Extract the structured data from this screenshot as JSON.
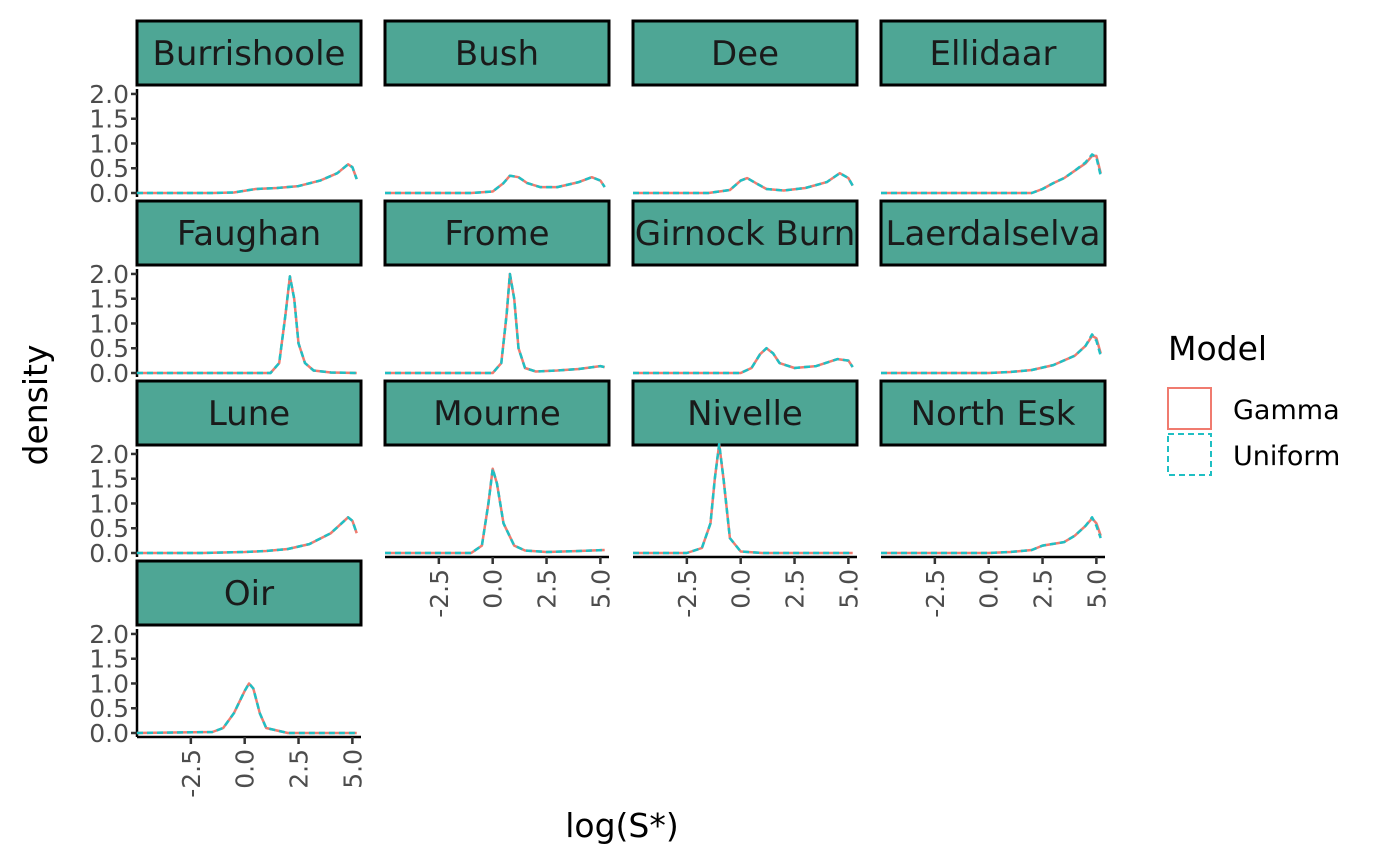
{
  "chart_data": {
    "type": "line",
    "xlabel": "log(S*)",
    "ylabel": "density",
    "xlim": [
      -5,
      5.4
    ],
    "ylim": [
      0,
      2.1
    ],
    "x_ticks": [
      "-2.5",
      "0.0",
      "2.5",
      "5.0"
    ],
    "x_tick_values": [
      -2.5,
      0,
      2.5,
      5
    ],
    "y_ticks": [
      "0.0",
      "0.5",
      "1.0",
      "1.5",
      "2.0"
    ],
    "y_tick_values": [
      0,
      0.5,
      1.0,
      1.5,
      2.0
    ],
    "legend": {
      "title": "Model",
      "position": "right",
      "entries": [
        {
          "name": "Gamma",
          "color": "#f07b6f",
          "dash": "solid"
        },
        {
          "name": "Uniform",
          "color": "#1fbfc3",
          "dash": "dashed"
        }
      ]
    },
    "colors": {
      "strip_fill": "#4ea695"
    },
    "panels": [
      {
        "name": "Burrishoole",
        "x": [
          -5,
          -1.5,
          -0.5,
          0.5,
          1.5,
          2.5,
          3.5,
          4.3,
          4.8,
          5.0,
          5.2
        ],
        "Gamma": [
          0,
          0,
          0.01,
          0.08,
          0.1,
          0.14,
          0.25,
          0.4,
          0.58,
          0.52,
          0.28
        ],
        "Uniform": [
          0,
          0,
          0.01,
          0.08,
          0.1,
          0.14,
          0.25,
          0.4,
          0.58,
          0.52,
          0.28
        ]
      },
      {
        "name": "Bush",
        "x": [
          -5,
          -1,
          0,
          0.5,
          0.8,
          1.2,
          1.6,
          2.2,
          3.0,
          4.0,
          4.6,
          5.0,
          5.2
        ],
        "Gamma": [
          0,
          0,
          0.03,
          0.2,
          0.35,
          0.32,
          0.2,
          0.12,
          0.12,
          0.22,
          0.32,
          0.25,
          0.12
        ],
        "Uniform": [
          0,
          0,
          0.03,
          0.2,
          0.35,
          0.32,
          0.2,
          0.12,
          0.12,
          0.22,
          0.32,
          0.25,
          0.12
        ]
      },
      {
        "name": "Dee",
        "x": [
          -5,
          -1.5,
          -0.5,
          0,
          0.3,
          0.7,
          1.2,
          2.0,
          3.0,
          4.0,
          4.6,
          5.0,
          5.2
        ],
        "Gamma": [
          0,
          0,
          0.06,
          0.25,
          0.3,
          0.2,
          0.08,
          0.05,
          0.1,
          0.22,
          0.4,
          0.3,
          0.15
        ],
        "Uniform": [
          0,
          0,
          0.06,
          0.25,
          0.3,
          0.2,
          0.08,
          0.05,
          0.1,
          0.22,
          0.4,
          0.3,
          0.15
        ]
      },
      {
        "name": "Ellidaar",
        "x": [
          -5,
          2.0,
          2.5,
          3.0,
          3.5,
          4.0,
          4.5,
          4.8,
          5.0,
          5.2
        ],
        "Gamma": [
          0,
          0,
          0.08,
          0.2,
          0.3,
          0.45,
          0.6,
          0.75,
          0.75,
          0.4
        ],
        "Uniform": [
          0,
          0,
          0.08,
          0.2,
          0.3,
          0.45,
          0.62,
          0.78,
          0.72,
          0.35
        ]
      },
      {
        "name": "Faughan",
        "x": [
          -5,
          1.2,
          1.6,
          1.9,
          2.1,
          2.3,
          2.5,
          2.8,
          3.2,
          4.0,
          5.2
        ],
        "Gamma": [
          0,
          0,
          0.2,
          1.2,
          1.95,
          1.5,
          0.6,
          0.2,
          0.05,
          0.01,
          0
        ],
        "Uniform": [
          0,
          0,
          0.2,
          1.2,
          1.95,
          1.5,
          0.6,
          0.2,
          0.05,
          0.01,
          0
        ]
      },
      {
        "name": "Frome",
        "x": [
          -5,
          0,
          0.4,
          0.65,
          0.8,
          1.0,
          1.2,
          1.5,
          2.0,
          3.0,
          4.0,
          5.0,
          5.2
        ],
        "Gamma": [
          0,
          0,
          0.2,
          1.2,
          2.0,
          1.5,
          0.5,
          0.1,
          0.03,
          0.05,
          0.08,
          0.14,
          0.12
        ],
        "Uniform": [
          0,
          0,
          0.2,
          1.2,
          2.0,
          1.5,
          0.5,
          0.1,
          0.03,
          0.05,
          0.08,
          0.14,
          0.12
        ]
      },
      {
        "name": "Girnock Burn",
        "x": [
          -5,
          0,
          0.5,
          0.9,
          1.2,
          1.5,
          1.8,
          2.5,
          3.5,
          4.5,
          5.0,
          5.2
        ],
        "Gamma": [
          0,
          0,
          0.1,
          0.38,
          0.5,
          0.4,
          0.2,
          0.1,
          0.14,
          0.28,
          0.25,
          0.12
        ],
        "Uniform": [
          0,
          0,
          0.1,
          0.38,
          0.5,
          0.4,
          0.2,
          0.1,
          0.14,
          0.28,
          0.25,
          0.12
        ]
      },
      {
        "name": "Laerdalselva",
        "x": [
          -5,
          0,
          1.0,
          2.0,
          3.0,
          4.0,
          4.5,
          4.8,
          5.0,
          5.2
        ],
        "Gamma": [
          0,
          0,
          0.02,
          0.06,
          0.16,
          0.35,
          0.55,
          0.75,
          0.7,
          0.4
        ],
        "Uniform": [
          0,
          0,
          0.02,
          0.06,
          0.16,
          0.35,
          0.55,
          0.78,
          0.65,
          0.35
        ]
      },
      {
        "name": "Lune",
        "x": [
          -5,
          -2,
          0,
          1.0,
          2.0,
          3.0,
          4.0,
          4.5,
          4.8,
          5.0,
          5.2
        ],
        "Gamma": [
          0,
          0,
          0.02,
          0.04,
          0.08,
          0.18,
          0.4,
          0.6,
          0.72,
          0.65,
          0.4
        ],
        "Uniform": [
          0,
          0,
          0.02,
          0.04,
          0.08,
          0.18,
          0.4,
          0.6,
          0.72,
          0.65,
          0.4
        ]
      },
      {
        "name": "Mourne",
        "x": [
          -5,
          -1.0,
          -0.5,
          -0.2,
          0,
          0.2,
          0.5,
          1.0,
          1.5,
          2.5,
          4.0,
          5.2
        ],
        "Gamma": [
          0,
          0,
          0.15,
          1.0,
          1.7,
          1.4,
          0.6,
          0.15,
          0.05,
          0.02,
          0.04,
          0.06
        ],
        "Uniform": [
          0,
          0,
          0.15,
          1.0,
          1.7,
          1.4,
          0.6,
          0.15,
          0.05,
          0.02,
          0.04,
          0.06
        ]
      },
      {
        "name": "Nivelle",
        "x": [
          -5,
          -2.5,
          -1.8,
          -1.4,
          -1.2,
          -1.0,
          -0.8,
          -0.5,
          0,
          1.0,
          5.2
        ],
        "Gamma": [
          0,
          0,
          0.1,
          0.6,
          1.5,
          2.2,
          1.5,
          0.3,
          0.03,
          0,
          0
        ],
        "Uniform": [
          0,
          0,
          0.1,
          0.6,
          1.5,
          2.2,
          1.5,
          0.3,
          0.03,
          0,
          0
        ]
      },
      {
        "name": "North Esk",
        "x": [
          -5,
          0,
          1.0,
          2.0,
          2.5,
          3.5,
          4.0,
          4.5,
          4.8,
          5.0,
          5.2
        ],
        "Gamma": [
          0,
          0,
          0.02,
          0.06,
          0.15,
          0.22,
          0.35,
          0.55,
          0.7,
          0.6,
          0.35
        ],
        "Uniform": [
          0,
          0,
          0.02,
          0.06,
          0.15,
          0.22,
          0.35,
          0.55,
          0.72,
          0.55,
          0.3
        ]
      },
      {
        "name": "Oir",
        "x": [
          -5,
          -1.5,
          -1.0,
          -0.5,
          0,
          0.2,
          0.4,
          0.7,
          1.0,
          2.0,
          5.2
        ],
        "Gamma": [
          0,
          0.02,
          0.1,
          0.4,
          0.85,
          1.0,
          0.9,
          0.4,
          0.1,
          0,
          0
        ],
        "Uniform": [
          0,
          0.02,
          0.1,
          0.4,
          0.85,
          1.0,
          0.9,
          0.4,
          0.1,
          0,
          0
        ]
      }
    ]
  }
}
